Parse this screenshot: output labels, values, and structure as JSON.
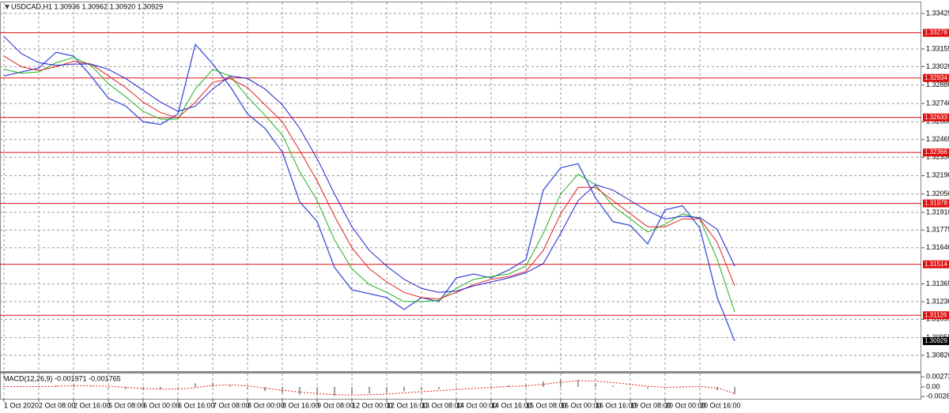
{
  "chart_data": [
    {
      "type": "line",
      "title": "USDCAD,H1  1.30936 1.30962 1.30920 1.30929",
      "categories": [
        "1 Oct 2020",
        null,
        "2 Oct 08:00",
        null,
        "2 Oct 16:00",
        null,
        "5 Oct 08:00",
        null,
        "6 Oct 00:00",
        null,
        "6 Oct 16:00",
        null,
        "7 Oct 08:00",
        null,
        "8 Oct 00:00",
        null,
        "8 Oct 16:00",
        null,
        "9 Oct 08:00",
        null,
        "12 Oct 00:00",
        null,
        "12 Oct 16:00",
        null,
        "13 Oct 08:00",
        null,
        "14 Oct 00:00",
        null,
        "14 Oct 16:00",
        null,
        "15 Oct 08:00",
        null,
        "16 Oct 00:00",
        null,
        "16 Oct 16:00",
        null,
        "19 Oct 08:00",
        null,
        "20 Oct 00:00",
        null,
        "20 Oct 16:00",
        null,
        null,
        null,
        null,
        null,
        null,
        null,
        null,
        null,
        null,
        null,
        null
      ],
      "series": [
        {
          "color": "#3b4fd8",
          "width": 1.3,
          "values": [
            1.3295,
            1.3298,
            1.3301,
            1.3313,
            1.331,
            1.3295,
            1.3278,
            1.3272,
            1.326,
            1.3258,
            1.3266,
            1.3319,
            1.3304,
            1.3287,
            1.3266,
            1.3255,
            1.3237,
            1.3199,
            1.3184,
            1.3149,
            1.3132,
            1.3129,
            1.3126,
            1.3117,
            1.3126,
            1.3123,
            1.3141,
            1.3144,
            1.3141,
            1.3147,
            1.3155,
            1.3208,
            1.3225,
            1.3228,
            1.3202,
            1.3184,
            1.3181,
            1.3167,
            1.3193,
            1.3196,
            1.3179,
            1.3126,
            1.30929,
            null,
            null,
            null,
            null,
            null,
            null,
            null,
            null,
            null,
            null
          ]
        },
        {
          "color": "#22b022",
          "width": 1,
          "values": [
            1.33,
            1.3297,
            1.3298,
            1.3305,
            1.3309,
            1.3303,
            1.3289,
            1.3279,
            1.3268,
            1.3262,
            1.3262,
            1.3285,
            1.33,
            1.3295,
            1.3279,
            1.3265,
            1.325,
            1.3222,
            1.32,
            1.317,
            1.3148,
            1.3136,
            1.313,
            1.3123,
            1.3123,
            1.3124,
            1.3133,
            1.314,
            1.3142,
            1.3144,
            1.315,
            1.3175,
            1.3205,
            1.322,
            1.3212,
            1.3196,
            1.3186,
            1.3176,
            1.3182,
            1.319,
            1.3186,
            1.3155,
            1.3115,
            null,
            null,
            null,
            null,
            null,
            null,
            null,
            null,
            null,
            null
          ]
        },
        {
          "color": "#e02020",
          "width": 1,
          "values": [
            1.331,
            1.3302,
            1.3299,
            1.3302,
            1.3306,
            1.3304,
            1.3295,
            1.3286,
            1.3275,
            1.3267,
            1.3263,
            1.3275,
            1.329,
            1.3293,
            1.3286,
            1.3273,
            1.326,
            1.3238,
            1.3215,
            1.3188,
            1.3164,
            1.3148,
            1.3138,
            1.313,
            1.3126,
            1.3125,
            1.313,
            1.3136,
            1.314,
            1.3142,
            1.3146,
            1.3162,
            1.319,
            1.321,
            1.321,
            1.32,
            1.319,
            1.318,
            1.318,
            1.3186,
            1.3186,
            1.3168,
            1.3135,
            null,
            null,
            null,
            null,
            null,
            null,
            null,
            null,
            null,
            null
          ]
        },
        {
          "color": "#2020d0",
          "width": 1,
          "values": [
            1.3325,
            1.3312,
            1.3305,
            1.3303,
            1.3304,
            1.3304,
            1.33,
            1.3293,
            1.3284,
            1.3275,
            1.3268,
            1.3272,
            1.3285,
            1.3295,
            1.3293,
            1.3285,
            1.3273,
            1.3255,
            1.3232,
            1.3205,
            1.318,
            1.3162,
            1.315,
            1.314,
            1.3133,
            1.313,
            1.3131,
            1.3135,
            1.3138,
            1.3141,
            1.3145,
            1.3152,
            1.3175,
            1.32,
            1.3212,
            1.3208,
            1.32,
            1.3192,
            1.3186,
            1.3188,
            1.3187,
            1.3178,
            1.315,
            null,
            null,
            null,
            null,
            null,
            null,
            null,
            null,
            null,
            null
          ]
        }
      ],
      "ylim": [
        1.307,
        1.3351
      ],
      "yticks": [
        1.33425,
        1.33155,
        {
          "value": 1.3302,
          "label": "1.33020"
        },
        {
          "value": 1.3288,
          "label": "1.32880"
        },
        {
          "value": 1.3274,
          "label": "1.32740"
        },
        {
          "value": 1.326,
          "label": "1.32600"
        },
        1.32465,
        {
          "value": 1.3233,
          "label": "1.32330"
        },
        {
          "value": 1.3219,
          "label": "1.32190"
        },
        {
          "value": 1.3205,
          "label": "1.32050"
        },
        {
          "value": 1.3191,
          "label": "1.31910"
        },
        1.31775,
        {
          "value": 1.3164,
          "label": "1.31640"
        },
        1.31365,
        {
          "value": 1.3123,
          "label": "1.31230"
        },
        1.31095,
        1.30955,
        {
          "value": 1.3082,
          "label": "1.30820"
        }
      ],
      "levels": [
        1.33278,
        1.32934,
        1.32633,
        1.32366,
        1.31978,
        1.31514,
        1.31126
      ],
      "level_color": "#e01010",
      "current_price": 1.30929,
      "grid": true
    },
    {
      "type": "macd",
      "title": "MACD(12,26,9) -0.001971 -0.001765",
      "series": [
        {
          "style": "bar",
          "color": "#a0a0a0",
          "values": [
            0.0002,
            0.0001,
            0.0001,
            0.0004,
            0.0006,
            0.0002,
            -0.0003,
            -0.0006,
            -0.0009,
            -0.0007,
            -0.0003,
            0.001,
            0.0012,
            0.0004,
            -0.0005,
            -0.0011,
            -0.0016,
            -0.0021,
            -0.0023,
            -0.0024,
            -0.0021,
            -0.0018,
            -0.0015,
            -0.0012,
            -0.0009,
            -0.0006,
            -0.0002,
            0.0001,
            0.0002,
            0.0004,
            0.0006,
            0.0015,
            0.0021,
            0.0019,
            0.001,
            0.0004,
            0.0,
            -0.0004,
            -0.0001,
            0.0002,
            0.0001,
            -0.0009,
            -0.001971,
            null,
            null,
            null,
            null,
            null,
            null,
            null,
            null,
            null,
            null
          ]
        },
        {
          "style": "dotted-line",
          "color": "#e02020",
          "values": [
            0.0001,
            0.0001,
            0.0001,
            0.0002,
            0.0003,
            0.0003,
            0.0002,
            -0.0001,
            -0.0004,
            -0.0006,
            -0.0006,
            -0.0002,
            0.0004,
            0.0006,
            0.0003,
            -0.0003,
            -0.0009,
            -0.0014,
            -0.0018,
            -0.0021,
            -0.0022,
            -0.0021,
            -0.0019,
            -0.0016,
            -0.0013,
            -0.001,
            -0.0007,
            -0.0004,
            -0.0001,
            0.0001,
            0.0003,
            0.0007,
            0.0013,
            0.0017,
            0.0016,
            0.0012,
            0.0007,
            0.0002,
            -0.0001,
            0.0,
            0.0001,
            -0.0003,
            -0.001765,
            null,
            null,
            null,
            null,
            null,
            null,
            null,
            null,
            null,
            null
          ]
        }
      ],
      "ylim": [
        -0.003,
        0.003
      ],
      "yticks": [
        0.002739,
        {
          "value": 0,
          "label": "0.00"
        },
        -0.002612
      ]
    }
  ]
}
